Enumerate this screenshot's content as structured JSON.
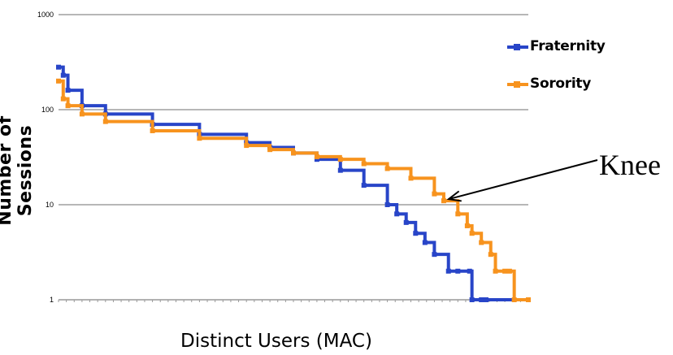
{
  "chart_data": {
    "type": "line",
    "xlabel": "Distinct Users (MAC)",
    "ylabel": "Number of Sessions",
    "y_scale": "log",
    "ylim": [
      1,
      1000
    ],
    "y_ticks": [
      "1000",
      "100",
      "10",
      "1"
    ],
    "xlim": [
      0,
      1
    ],
    "grid": true,
    "legend_position": "top-right",
    "annotation": {
      "text": "Knee",
      "x": 0.82,
      "y": 11
    },
    "series": [
      {
        "name": "Fraternity",
        "color": "#2845c8",
        "x": [
          0.0,
          0.01,
          0.02,
          0.05,
          0.1,
          0.2,
          0.3,
          0.4,
          0.45,
          0.5,
          0.55,
          0.6,
          0.65,
          0.7,
          0.72,
          0.74,
          0.76,
          0.78,
          0.8,
          0.83,
          0.85,
          0.875,
          0.88,
          0.9,
          0.91,
          1.0
        ],
        "values": [
          280,
          230,
          160,
          110,
          90,
          70,
          55,
          45,
          40,
          35,
          30,
          23,
          16,
          10,
          8,
          6.5,
          5,
          4,
          3,
          2,
          2,
          2,
          1,
          1,
          1,
          1
        ]
      },
      {
        "name": "Sorority",
        "color": "#f7931e",
        "x": [
          0.0,
          0.01,
          0.02,
          0.05,
          0.1,
          0.2,
          0.3,
          0.4,
          0.45,
          0.5,
          0.55,
          0.6,
          0.65,
          0.7,
          0.75,
          0.8,
          0.82,
          0.85,
          0.87,
          0.88,
          0.9,
          0.92,
          0.93,
          0.95,
          0.96,
          0.97,
          1.0
        ],
        "values": [
          200,
          130,
          110,
          90,
          75,
          60,
          50,
          42,
          38,
          35,
          32,
          30,
          27,
          24,
          19,
          13,
          11,
          8,
          6,
          5,
          4,
          3,
          2,
          2,
          2,
          1,
          1
        ]
      }
    ]
  }
}
